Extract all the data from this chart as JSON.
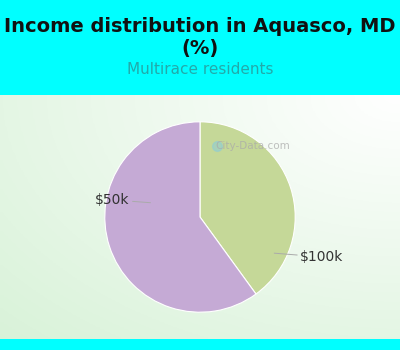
{
  "title": "Income distribution in Aquasco, MD\n(%)",
  "subtitle": "Multirace residents",
  "title_fontsize": 14,
  "subtitle_fontsize": 11,
  "subtitle_color": "#22aaaa",
  "title_color": "#111111",
  "background_color": "#00ffff",
  "slices": [
    {
      "label": "$50k",
      "value": 40,
      "color": "#c5d898"
    },
    {
      "label": "$100k",
      "value": 60,
      "color": "#c5aad5"
    }
  ],
  "label_fontsize": 10,
  "label_color": "#333333",
  "startangle": 90
}
